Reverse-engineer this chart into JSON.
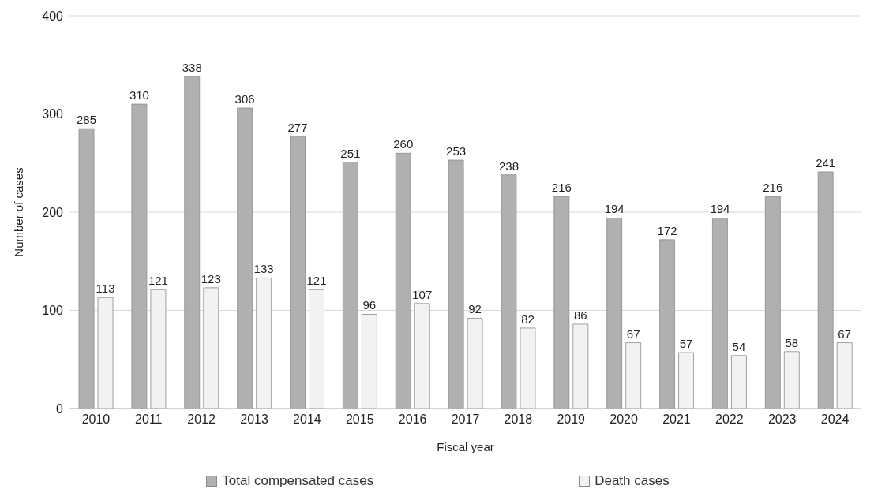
{
  "chart_data": {
    "type": "bar",
    "xlabel": "Fiscal year",
    "ylabel": "Number of cases",
    "categories": [
      "2010",
      "2011",
      "2012",
      "2013",
      "2014",
      "2015",
      "2016",
      "2017",
      "2018",
      "2019",
      "2020",
      "2021",
      "2022",
      "2023",
      "2024"
    ],
    "series": [
      {
        "name": "Total compensated cases",
        "color": "#b0b0b2",
        "values": [
          285,
          310,
          338,
          306,
          277,
          251,
          260,
          253,
          238,
          216,
          194,
          172,
          194,
          216,
          241
        ]
      },
      {
        "name": "Death cases",
        "color": "#f2f2f2",
        "values": [
          113,
          121,
          123,
          133,
          121,
          96,
          107,
          92,
          82,
          86,
          67,
          57,
          54,
          58,
          67
        ]
      }
    ],
    "ylim": [
      0,
      400
    ],
    "yticks": [
      0,
      100,
      200,
      300,
      400
    ],
    "grid": "y",
    "legend": "bottom",
    "data_labels": true
  }
}
